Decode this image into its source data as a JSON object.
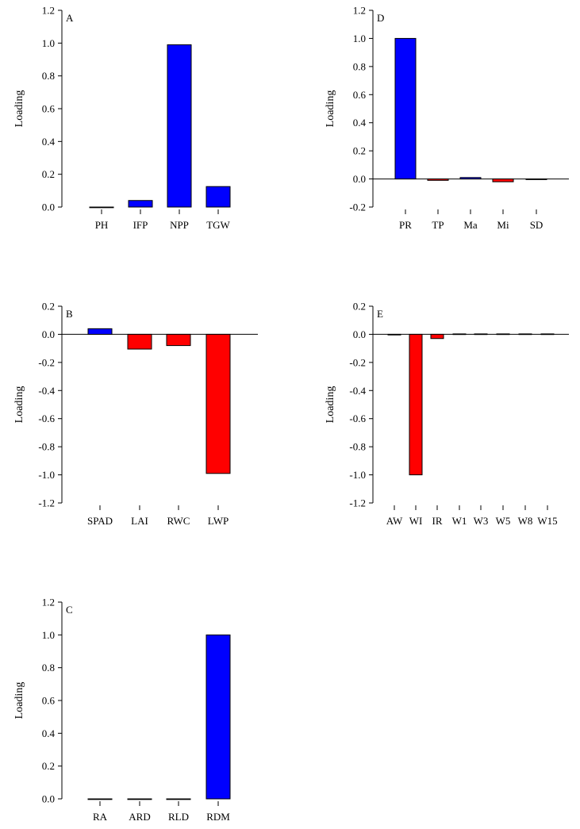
{
  "colors": {
    "positive": "#0000ff",
    "negative": "#ff0000",
    "axis": "#000000"
  },
  "chart_data": [
    {
      "id": "A",
      "type": "bar",
      "panel_label": "A",
      "ylabel": "Loading",
      "ylim": [
        0,
        1.2
      ],
      "yticks": [
        "0.0",
        "0.2",
        "0.4",
        "0.6",
        "0.8",
        "1.0",
        "1.2"
      ],
      "categories": [
        "PH",
        "IFP",
        "NPP",
        "TGW"
      ],
      "values": [
        0,
        0.04,
        0.99,
        0.125
      ]
    },
    {
      "id": "B",
      "type": "bar",
      "panel_label": "B",
      "ylabel": "Loading",
      "ylim": [
        -1.2,
        0.2
      ],
      "yticks": [
        "-1.2",
        "-1.0",
        "-0.8",
        "-0.6",
        "-0.4",
        "-0.2",
        "0.0",
        "0.2"
      ],
      "categories": [
        "SPAD",
        "LAI",
        "RWC",
        "LWP"
      ],
      "values": [
        0.04,
        -0.105,
        -0.08,
        -0.99
      ]
    },
    {
      "id": "C",
      "type": "bar",
      "panel_label": "C",
      "ylabel": "Loading",
      "ylim": [
        0,
        1.2
      ],
      "yticks": [
        "0.0",
        "0.2",
        "0.4",
        "0.6",
        "0.8",
        "1.0",
        "1.2"
      ],
      "categories": [
        "RA",
        "ARD",
        "RLD",
        "RDM"
      ],
      "values": [
        0,
        0,
        0,
        1.0
      ]
    },
    {
      "id": "D",
      "type": "bar",
      "panel_label": "D",
      "ylabel": "Loading",
      "ylim": [
        -0.2,
        1.2
      ],
      "yticks": [
        "-0.2",
        "0.0",
        "0.2",
        "0.4",
        "0.6",
        "0.8",
        "1.0",
        "1.2"
      ],
      "categories": [
        "PR",
        "TP",
        "Ma",
        "Mi",
        "SD"
      ],
      "values": [
        1.0,
        -0.01,
        0.01,
        -0.02,
        -0.003
      ]
    },
    {
      "id": "E",
      "type": "bar",
      "panel_label": "E",
      "ylabel": "Loading",
      "ylim": [
        -1.2,
        0.2
      ],
      "yticks": [
        "-1.2",
        "-1.0",
        "-0.8",
        "-0.6",
        "-0.4",
        "-0.2",
        "0.0",
        "0.2"
      ],
      "categories": [
        "AW",
        "WI",
        "IR",
        "W1",
        "W3",
        "W5",
        "W8",
        "W15"
      ],
      "values": [
        0,
        -1.0,
        -0.03,
        0.003,
        0.003,
        0.003,
        0.003,
        0.003
      ]
    }
  ]
}
